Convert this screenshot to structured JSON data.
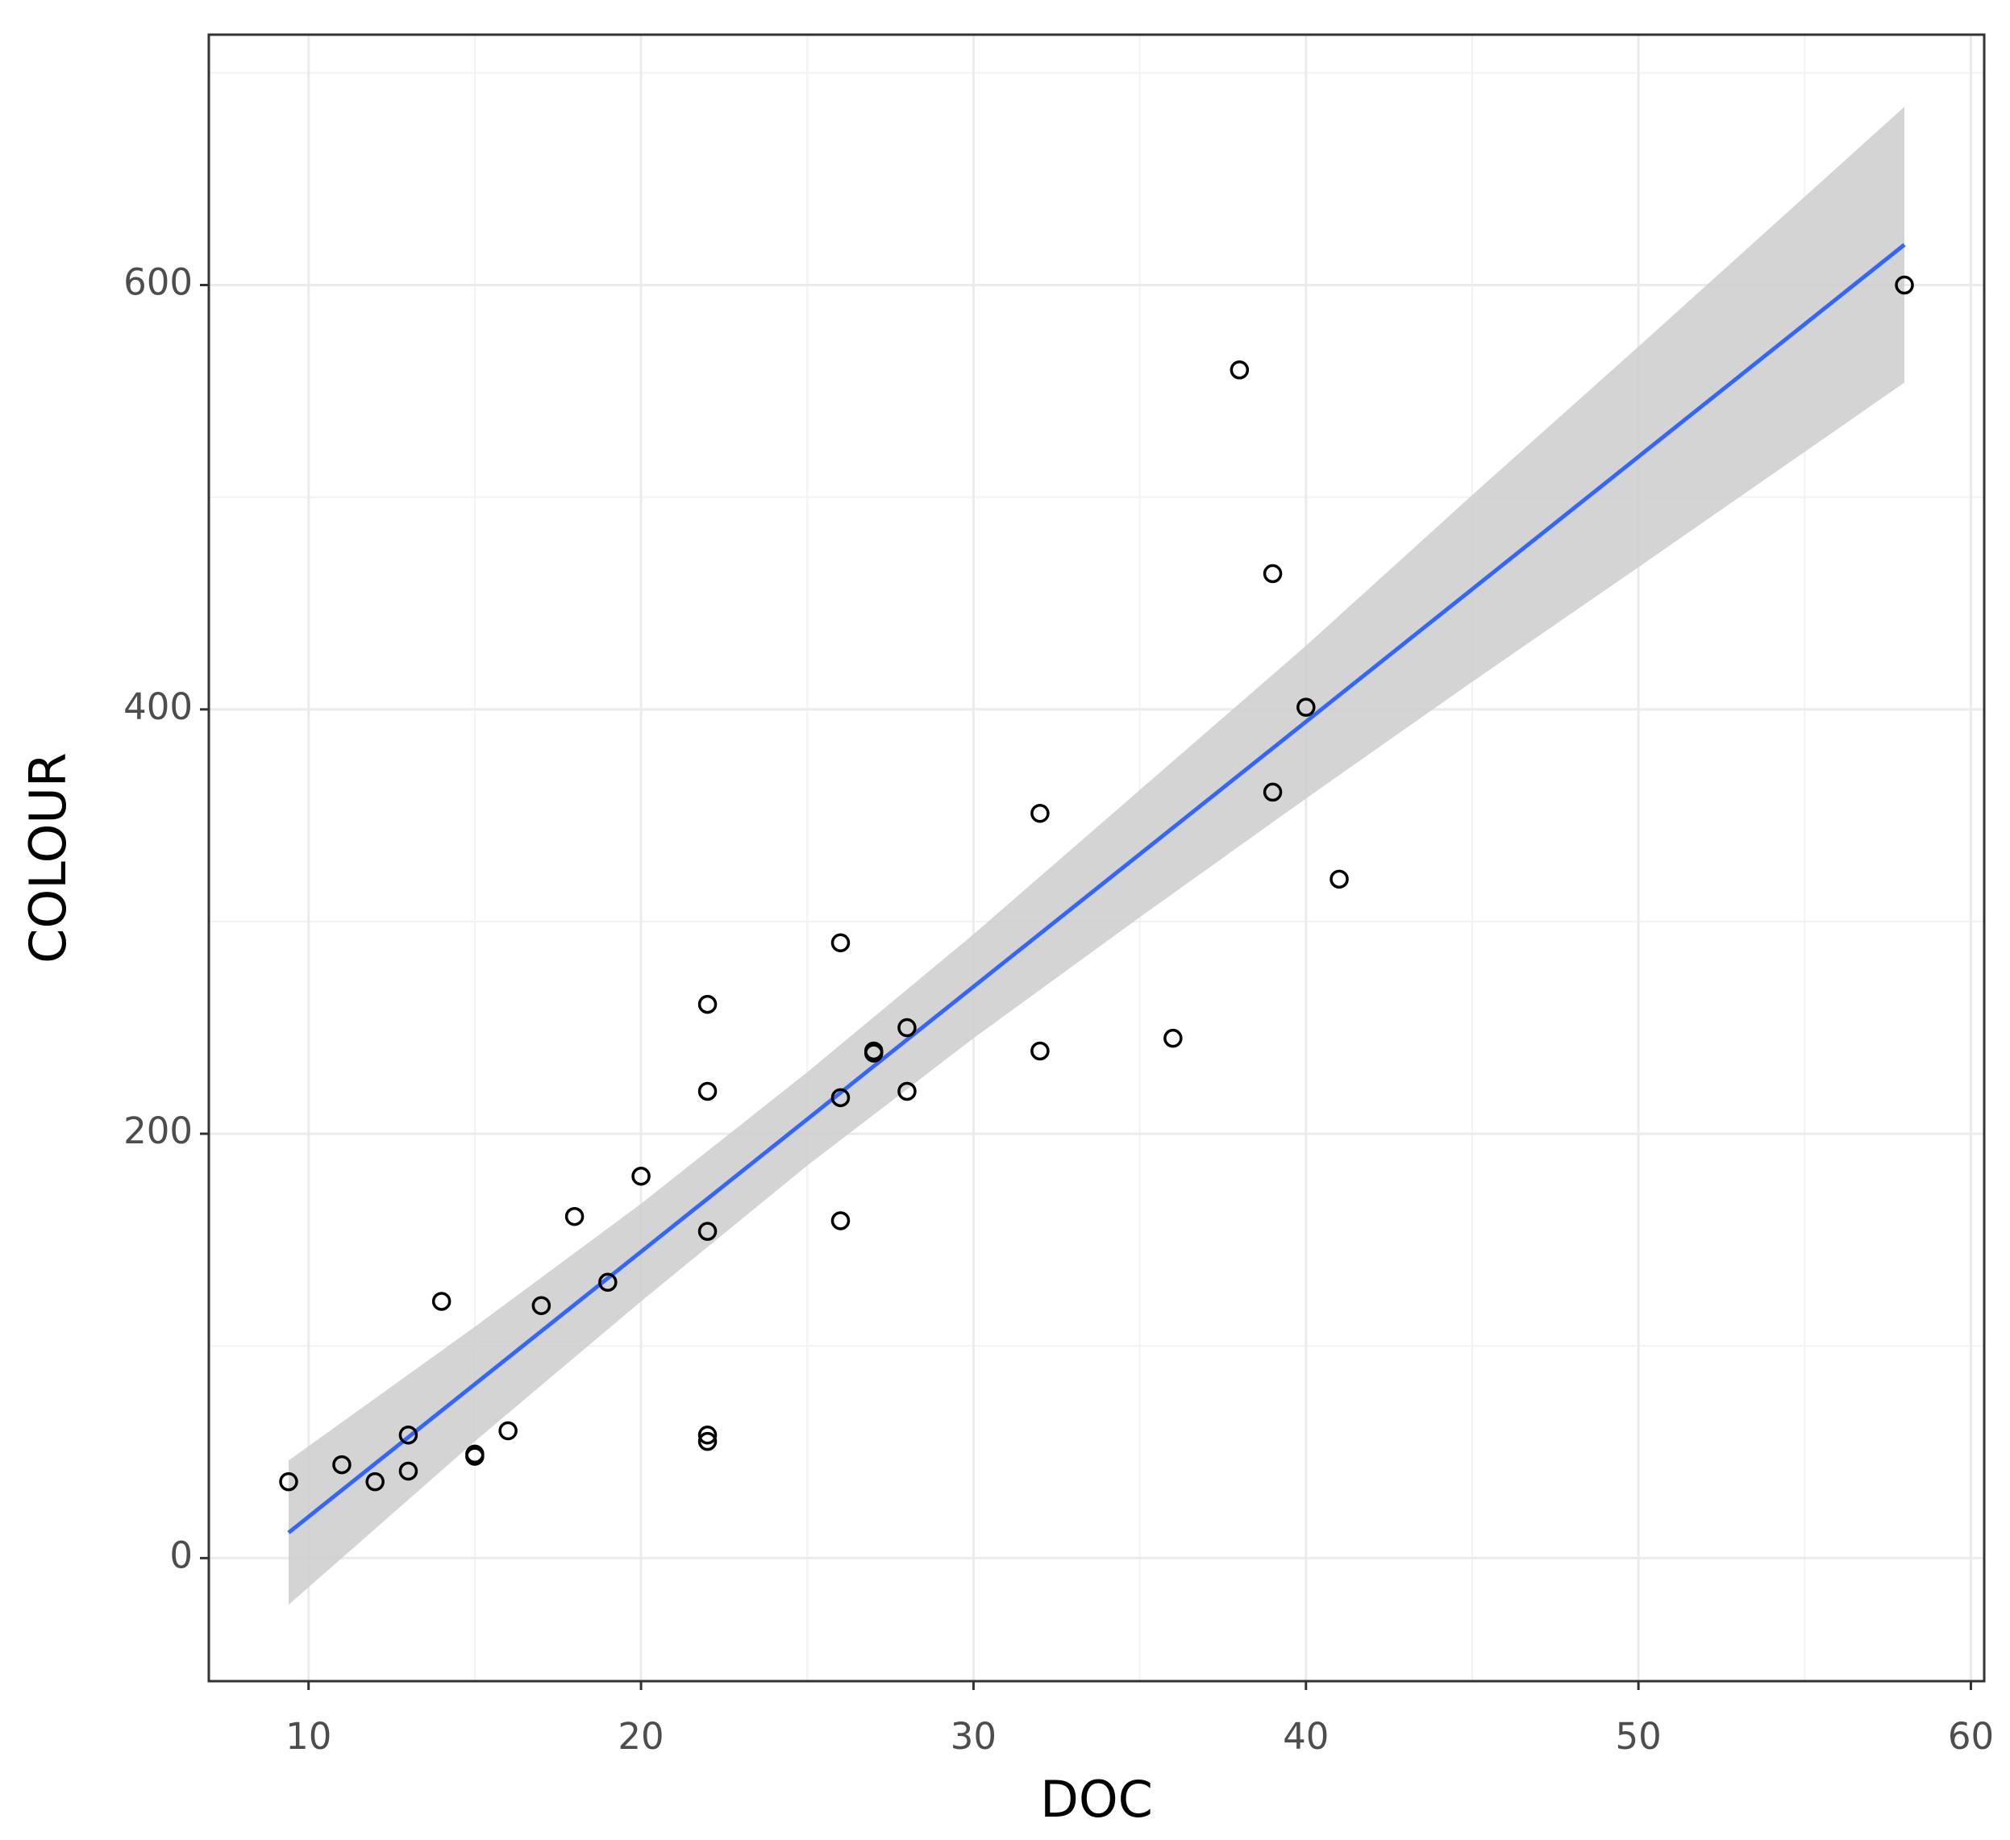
{
  "chart_data": {
    "type": "scatter",
    "x_label": "DOC",
    "y_label": "COLOUR",
    "x": [
      9.4,
      11,
      12,
      13,
      13,
      14,
      15,
      15,
      16,
      17,
      18,
      19,
      20,
      22,
      22,
      22,
      22,
      22,
      26,
      26,
      26,
      27,
      27,
      28,
      28,
      32,
      32,
      36,
      38,
      39,
      39,
      40,
      41,
      58
    ],
    "y": [
      36,
      44,
      36,
      58,
      41,
      121,
      49,
      48,
      60,
      119,
      161,
      130,
      180,
      261,
      220,
      154,
      58,
      55,
      290,
      217,
      159,
      239,
      238,
      250,
      220,
      351,
      239,
      245,
      560,
      464,
      361,
      401,
      320,
      600
    ],
    "point_color": "#000000",
    "trend": {
      "x": [
        9.4,
        58
      ],
      "y": [
        12,
        619
      ],
      "color": "#3366ff"
    },
    "band": {
      "x": [
        9.4,
        15,
        20,
        25,
        30,
        35,
        40,
        45,
        50,
        58
      ],
      "lower": [
        -22,
        55,
        121,
        185,
        245,
        302,
        358,
        413,
        467,
        554
      ],
      "upper": [
        46,
        109,
        167,
        229,
        294,
        362,
        430,
        501,
        571,
        684
      ],
      "color": "#cccccc"
    },
    "xlim": [
      7,
      60.4
    ],
    "ylim": [
      -58,
      718
    ],
    "xticks": [
      10,
      20,
      30,
      40,
      50,
      60
    ],
    "yticks": [
      0,
      200,
      400,
      600
    ],
    "minor_xticks": [
      15,
      25,
      35,
      45,
      55
    ],
    "minor_yticks": [
      100,
      300,
      500,
      700
    ],
    "grid": true
  }
}
